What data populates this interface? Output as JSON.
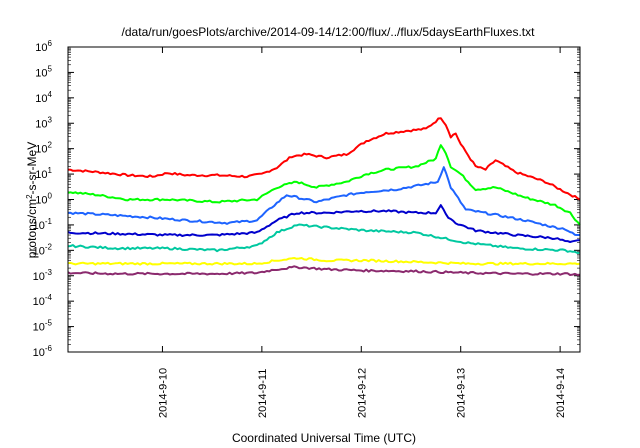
{
  "chart_data": {
    "type": "line",
    "title": "/data/run/goesPlots/archive/2014-09-14/12:00/flux/../flux/5daysEarthFluxes.txt",
    "xlabel": "Coordinated Universal Time (UTC)",
    "ylabel": {
      "prefix": "protons/cm",
      "sup": "2",
      "suffix": "-s-sr-MeV"
    },
    "x_range_days": [
      0,
      5.15
    ],
    "x_ticks": [
      {
        "label": "2014-9-10",
        "day": 0.95
      },
      {
        "label": "2014-9-11",
        "day": 1.95
      },
      {
        "label": "2014-9-12",
        "day": 2.95
      },
      {
        "label": "2014-9-13",
        "day": 3.95
      },
      {
        "label": "2014-9-14",
        "day": 4.95
      }
    ],
    "y_scale": "log",
    "ylim_exp": [
      -6,
      6
    ],
    "y_ticks": [
      {
        "base": "10",
        "exp": "-6"
      },
      {
        "base": "10",
        "exp": "-5"
      },
      {
        "base": "10",
        "exp": "-4"
      },
      {
        "base": "10",
        "exp": "-3"
      },
      {
        "base": "10",
        "exp": "-2"
      },
      {
        "base": "10",
        "exp": "-1"
      },
      {
        "base": "10",
        "exp": "0"
      },
      {
        "base": "10",
        "exp": "1"
      },
      {
        "base": "10",
        "exp": "2"
      },
      {
        "base": "10",
        "exp": "3"
      },
      {
        "base": "10",
        "exp": "4"
      },
      {
        "base": "10",
        "exp": "5"
      },
      {
        "base": "10",
        "exp": "6"
      }
    ],
    "grid": false,
    "legend": "none",
    "series": [
      {
        "color": "#ff0000",
        "x": [
          0,
          0.3,
          0.6,
          0.85,
          1.0,
          1.2,
          1.5,
          1.8,
          1.95,
          2.1,
          2.25,
          2.4,
          2.6,
          2.8,
          3.0,
          3.2,
          3.4,
          3.6,
          3.75,
          3.8,
          3.85,
          3.9,
          3.95,
          4.1,
          4.2,
          4.3,
          4.5,
          4.8,
          5.0,
          5.15
        ],
        "y": [
          15,
          12,
          9,
          8,
          11,
          9,
          9,
          8,
          10,
          18,
          50,
          60,
          45,
          60,
          200,
          400,
          500,
          600,
          1700,
          900,
          300,
          400,
          150,
          20,
          15,
          35,
          12,
          5,
          2,
          1
        ]
      },
      {
        "color": "#00ff00",
        "x": [
          0,
          0.3,
          0.6,
          1.0,
          1.5,
          1.9,
          2.1,
          2.3,
          2.5,
          2.8,
          3.0,
          3.2,
          3.5,
          3.7,
          3.75,
          3.8,
          3.85,
          3.95,
          4.1,
          4.3,
          4.6,
          4.9,
          5.05,
          5.15
        ],
        "y": [
          2,
          1.5,
          1,
          1,
          0.8,
          1,
          3,
          5,
          3,
          5,
          10,
          15,
          20,
          40,
          150,
          70,
          20,
          10,
          2.5,
          3,
          1.2,
          0.6,
          0.3,
          0.1
        ]
      },
      {
        "color": "#1e64ff",
        "x": [
          0,
          0.4,
          0.8,
          1.2,
          1.6,
          1.9,
          2.05,
          2.2,
          2.5,
          2.8,
          3.0,
          3.3,
          3.6,
          3.72,
          3.78,
          3.85,
          4.0,
          4.3,
          4.6,
          4.9,
          5.0,
          5.1,
          5.15
        ],
        "y": [
          0.3,
          0.25,
          0.2,
          0.15,
          0.12,
          0.15,
          0.5,
          1.5,
          0.8,
          1.5,
          2,
          2.5,
          4,
          5,
          20,
          3,
          0.4,
          0.25,
          0.15,
          0.08,
          0.07,
          0.04,
          0.04
        ]
      },
      {
        "color": "#0000cc",
        "x": [
          0,
          0.5,
          1.0,
          1.5,
          1.9,
          2.1,
          2.3,
          2.6,
          2.9,
          3.2,
          3.5,
          3.7,
          3.75,
          3.8,
          3.9,
          4.1,
          4.5,
          4.9,
          5.05,
          5.15
        ],
        "y": [
          0.05,
          0.045,
          0.04,
          0.04,
          0.05,
          0.15,
          0.3,
          0.3,
          0.35,
          0.35,
          0.3,
          0.3,
          0.6,
          0.25,
          0.12,
          0.06,
          0.04,
          0.03,
          0.02,
          0.025
        ]
      },
      {
        "color": "#00c8a0",
        "x": [
          0,
          0.5,
          1.0,
          1.5,
          1.9,
          2.1,
          2.3,
          2.6,
          3.0,
          3.5,
          4.0,
          4.5,
          5.0,
          5.15
        ],
        "y": [
          0.015,
          0.012,
          0.012,
          0.01,
          0.015,
          0.05,
          0.1,
          0.08,
          0.06,
          0.05,
          0.02,
          0.012,
          0.01,
          0.008
        ]
      },
      {
        "color": "#ffff00",
        "x": [
          0,
          0.5,
          1.0,
          1.5,
          1.9,
          2.1,
          2.3,
          2.6,
          3.0,
          3.5,
          4.0,
          4.5,
          5.0,
          5.15
        ],
        "y": [
          0.003,
          0.003,
          0.003,
          0.003,
          0.003,
          0.004,
          0.005,
          0.004,
          0.004,
          0.0035,
          0.003,
          0.003,
          0.003,
          0.003
        ]
      },
      {
        "color": "#8b2a6e",
        "x": [
          0,
          0.5,
          1.0,
          1.5,
          1.9,
          2.1,
          2.3,
          2.6,
          3.0,
          3.5,
          4.0,
          4.5,
          5.0,
          5.15
        ],
        "y": [
          0.0013,
          0.0012,
          0.0012,
          0.0012,
          0.0013,
          0.0018,
          0.0022,
          0.0018,
          0.0016,
          0.0015,
          0.0013,
          0.0012,
          0.0012,
          0.0011
        ]
      }
    ]
  }
}
